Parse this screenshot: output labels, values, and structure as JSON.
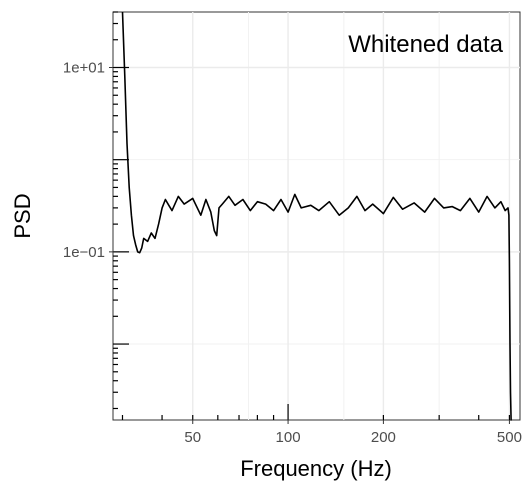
{
  "chart_data": {
    "type": "line",
    "title": "Whitened data",
    "xlabel": "Frequency (Hz)",
    "ylabel": "PSD",
    "x_scale": "log",
    "y_scale": "log",
    "xlim": [
      28,
      540
    ],
    "ylim": [
      0.0015,
      40
    ],
    "x_ticks": [
      {
        "value": 50,
        "label": "50"
      },
      {
        "value": 100,
        "label": "100"
      },
      {
        "value": 200,
        "label": "200"
      },
      {
        "value": 500,
        "label": "500"
      }
    ],
    "y_ticks": [
      {
        "value": 10,
        "label": "1e+01"
      },
      {
        "value": 0.1,
        "label": "1e−01"
      }
    ],
    "grid": true,
    "series": [
      {
        "color": "#000000",
        "x": [
          30.0,
          30.5,
          31.0,
          31.5,
          32.0,
          32.5,
          33.0,
          33.5,
          34.0,
          34.5,
          35.0,
          36.0,
          37.0,
          38.0,
          39.0,
          40.0,
          41.0,
          42.0,
          43.0,
          45.0,
          47.0,
          50.0,
          53.0,
          55.0,
          57.0,
          58.5,
          59.5,
          60.5,
          62.0,
          65.0,
          68.0,
          72.0,
          76.0,
          80.0,
          85.0,
          90.0,
          95.0,
          100.0,
          105.0,
          110.0,
          118.0,
          125.0,
          135.0,
          145.0,
          155.0,
          165.0,
          175.0,
          185.0,
          200.0,
          215.0,
          230.0,
          250.0,
          270.0,
          290.0,
          310.0,
          330.0,
          350.0,
          375.0,
          400.0,
          425.0,
          450.0,
          470.0,
          485.0,
          495.0,
          498.0,
          500.0,
          502.0,
          504.0,
          506.0,
          508.0
        ],
        "y": [
          50.0,
          8.0,
          1.5,
          0.5,
          0.25,
          0.15,
          0.12,
          0.1,
          0.098,
          0.11,
          0.14,
          0.13,
          0.16,
          0.14,
          0.2,
          0.3,
          0.37,
          0.32,
          0.28,
          0.4,
          0.33,
          0.38,
          0.25,
          0.37,
          0.27,
          0.17,
          0.15,
          0.3,
          0.33,
          0.4,
          0.32,
          0.37,
          0.28,
          0.35,
          0.33,
          0.28,
          0.37,
          0.27,
          0.42,
          0.3,
          0.32,
          0.28,
          0.35,
          0.25,
          0.3,
          0.4,
          0.28,
          0.33,
          0.26,
          0.39,
          0.29,
          0.34,
          0.27,
          0.38,
          0.3,
          0.31,
          0.28,
          0.38,
          0.27,
          0.4,
          0.3,
          0.35,
          0.28,
          0.3,
          0.25,
          0.08,
          0.01,
          0.003,
          0.0013,
          0.0008
        ]
      }
    ]
  }
}
